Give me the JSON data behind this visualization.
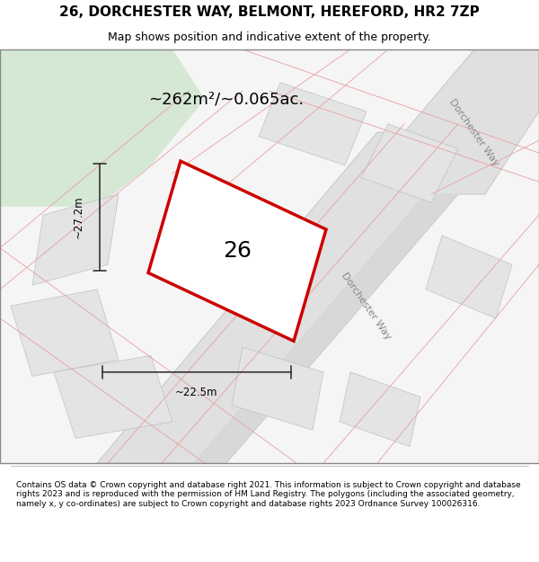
{
  "title": "26, DORCHESTER WAY, BELMONT, HEREFORD, HR2 7ZP",
  "subtitle": "Map shows position and indicative extent of the property.",
  "area_text": "~262m²/~0.065ac.",
  "width_label": "~22.5m",
  "height_label": "~27.2m",
  "plot_number": "26",
  "footer": "Contains OS data © Crown copyright and database right 2021. This information is subject to Crown copyright and database rights 2023 and is reproduced with the permission of HM Land Registry. The polygons (including the associated geometry, namely x, y co-ordinates) are subject to Crown copyright and database rights 2023 Ordnance Survey 100026316.",
  "map_bg": "#f5f5f5",
  "road_fill": "#e8e8e8",
  "road_stroke": "#cccccc",
  "plot_fill": "#ffffff",
  "plot_stroke": "#cc0000",
  "green_area": "#d4e8d4",
  "dim_line_color": "#333333",
  "road_label_color": "#888888",
  "road_label_1": "Dorchester Way",
  "road_label_2": "Dorchester Way"
}
